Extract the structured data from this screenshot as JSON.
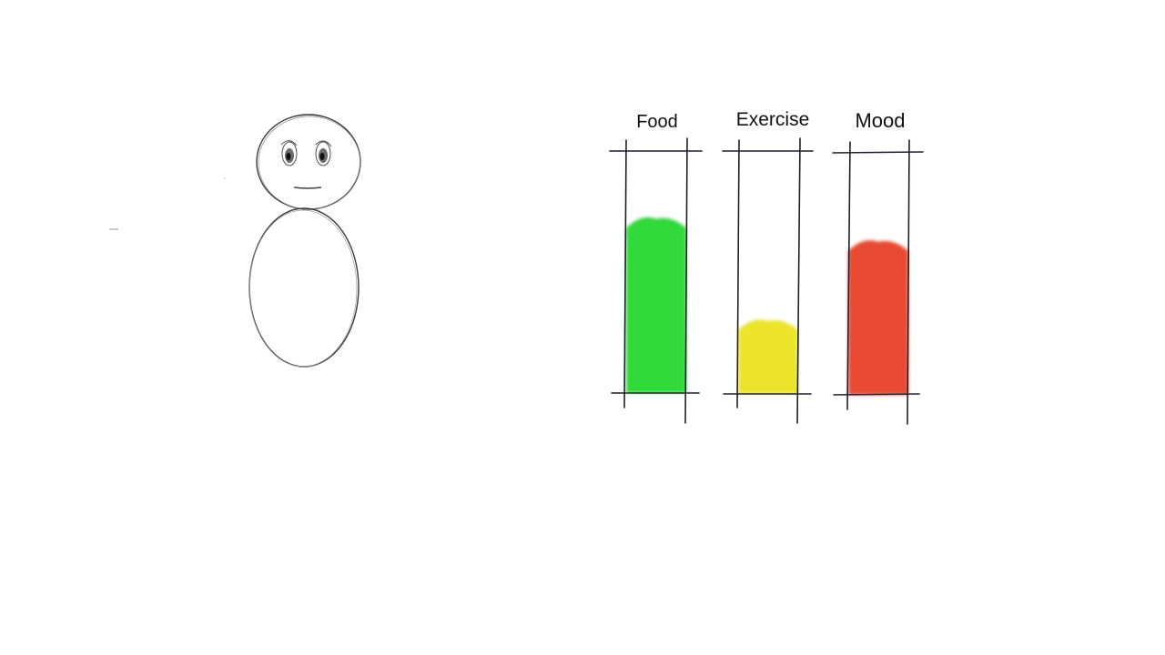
{
  "character": {
    "expression": "neutral"
  },
  "meters": [
    {
      "id": "food",
      "label": "Food",
      "level": 0.72,
      "color": "#33d93a"
    },
    {
      "id": "exercise",
      "label": "Exercise",
      "level": 0.3,
      "color": "#ece42a"
    },
    {
      "id": "mood",
      "label": "Mood",
      "level": 0.63,
      "color": "#e84a30"
    }
  ]
}
